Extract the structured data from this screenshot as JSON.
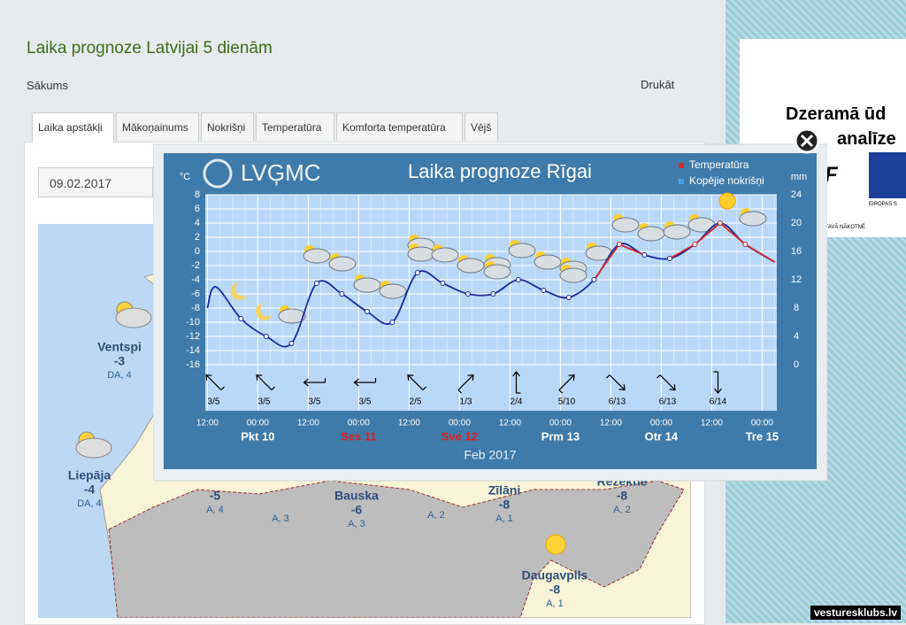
{
  "header": {
    "title": "Laika prognoze Latvijai 5 dienām",
    "breadcrumb": "Sākums",
    "print": "Drukāt"
  },
  "tabs": [
    "Laika apstākļi",
    "Mākoņainums",
    "Nokrišņi",
    "Temperatūra",
    "Komforta temperatūra",
    "Vējš"
  ],
  "date": "09.02.2017",
  "map": {
    "cities": [
      {
        "name": "Ventspi",
        "temp": -3,
        "wind": "DA, 4"
      },
      {
        "name": "Liepāja",
        "temp": -4,
        "wind": "DA, 4"
      },
      {
        "name": "",
        "temp": -5,
        "wind": "A, 4"
      },
      {
        "name": "",
        "temp": null,
        "wind": "A, 3"
      },
      {
        "name": "Bauska",
        "temp": -6,
        "wind": "A, 3"
      },
      {
        "name": "",
        "temp": null,
        "wind": "A, 2"
      },
      {
        "name": "Zīlāni",
        "temp": -8,
        "wind": "A, 1"
      },
      {
        "name": "Rēzekne",
        "temp": -8,
        "wind": "A, 2"
      },
      {
        "name": "Daugavpils",
        "temp": -8,
        "wind": "A, 1"
      }
    ]
  },
  "ad": {
    "line1": "Dzeramā ūd",
    "line2": "analīze",
    "logo": "F",
    "eu": "EIROPAS S",
    "slogan": "MS TAVĀ NĀKOTNĒ"
  },
  "watermark": "vesturesklubs.lv",
  "chart_data": {
    "type": "line",
    "title": "Laika prognoze Rīgai",
    "logo": "LVĢMC",
    "y_label": "°C",
    "y2_label": "mm",
    "x_label": "Feb 2017",
    "xlim": [
      -0.5,
      135.5
    ],
    "xticks": [
      {
        "value": 0,
        "label": "12:00"
      },
      {
        "value": 12,
        "label": "00:00"
      },
      {
        "value": 24,
        "label": "12:00"
      },
      {
        "value": 36,
        "label": "00:00"
      },
      {
        "value": 48,
        "label": "12:00"
      },
      {
        "value": 60,
        "label": "00:00"
      },
      {
        "value": 72,
        "label": "12:00"
      },
      {
        "value": 84,
        "label": "00:00"
      },
      {
        "value": 96,
        "label": "12:00"
      },
      {
        "value": 108,
        "label": "00:00"
      },
      {
        "value": 120,
        "label": "12:00"
      },
      {
        "value": 132,
        "label": "00:00"
      }
    ],
    "days": [
      {
        "label": "Pkt 10",
        "color": "#ffffff"
      },
      {
        "label": "Ses 11",
        "color": "#e02020"
      },
      {
        "label": "Sve 12",
        "color": "#e02020"
      },
      {
        "label": "Prm 13",
        "color": "#ffffff"
      },
      {
        "label": "Otr 14",
        "color": "#ffffff"
      },
      {
        "label": "Tre 15",
        "color": "#ffffff"
      }
    ],
    "ylim": [
      -16,
      8
    ],
    "yticks": [
      8,
      6,
      4,
      2,
      0,
      -2,
      -4,
      -6,
      -8,
      -10,
      -12,
      -14,
      -16
    ],
    "y2lim": [
      0,
      24
    ],
    "y2ticks": [
      24,
      20,
      16,
      12,
      8,
      4,
      0
    ],
    "grid": true,
    "series": [
      {
        "name": "Temperatūra",
        "color": "#d42a2a",
        "cold_color": "#1b2a9e",
        "x": [
          0,
          2,
          8,
          14,
          20,
          26,
          32,
          38,
          44,
          50,
          56,
          62,
          68,
          74,
          80,
          86,
          92,
          98,
          104,
          110,
          116,
          122,
          128,
          135
        ],
        "values": [
          -8,
          -5,
          -9.5,
          -12,
          -13,
          -4.5,
          -6,
          -8.5,
          -10,
          -3,
          -4.5,
          -6,
          -6,
          -4,
          -5.5,
          -6.5,
          -4,
          1,
          -0.5,
          -1,
          1,
          4,
          1,
          -1.5
        ]
      },
      {
        "name": "Kopējie nokrišņi",
        "color": "#4da3e8",
        "axis": "y2"
      }
    ],
    "wind": [
      "3/5",
      "3/5",
      "3/5",
      "3/5",
      "2/5",
      "1/3",
      "2/4",
      "5/10",
      "6/13",
      "6/13",
      "6/14"
    ]
  }
}
